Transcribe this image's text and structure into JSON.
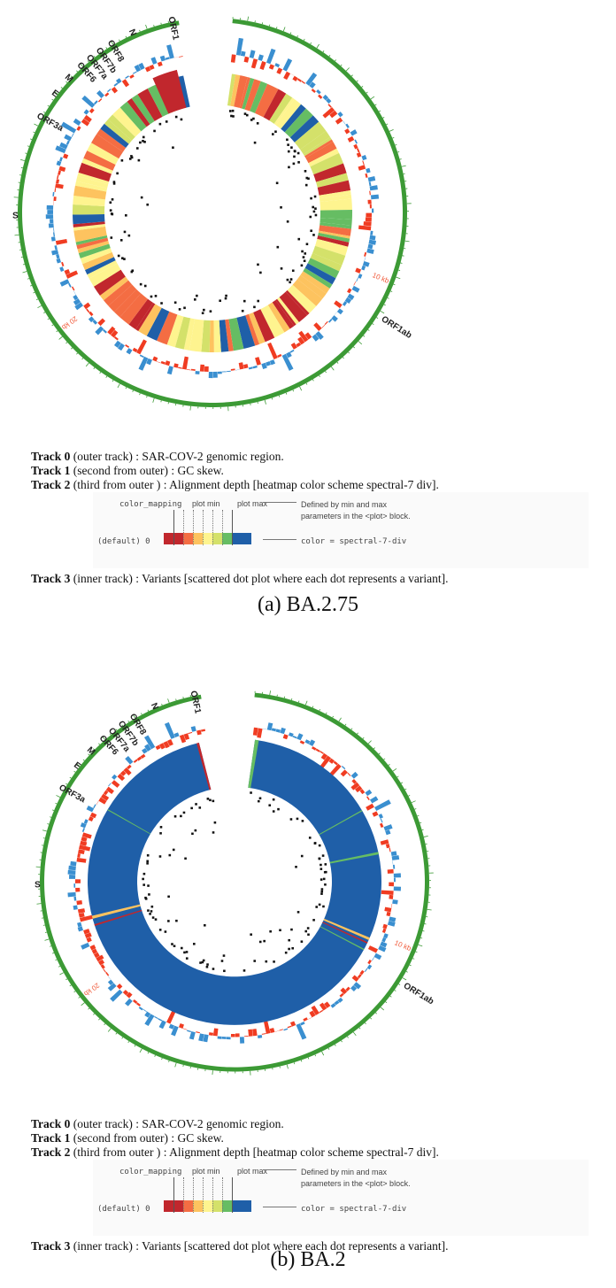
{
  "colors": {
    "genome_ring": "#3c9a35",
    "gc_positive": "#3a8fd0",
    "gc_negative": "#f03c22",
    "dots": "#111111",
    "spectral_7_div": [
      "#c1272d",
      "#c1272d",
      "#f46d43",
      "#fdc35f",
      "#fef48f",
      "#d4e16a",
      "#66bd63",
      "#1f5fa8",
      "#1f5fa8"
    ]
  },
  "panels": [
    {
      "caption": "(a) BA.2.75",
      "genes": [
        {
          "label": "ORF1",
          "angle": -12
        },
        {
          "label": "N",
          "angle": -24
        },
        {
          "label": "ORF8",
          "angle": -31
        },
        {
          "label": "ORF7b",
          "angle": -35
        },
        {
          "label": "ORF7a",
          "angle": -38.5
        },
        {
          "label": "ORF6",
          "angle": -42
        },
        {
          "label": "M",
          "angle": -47
        },
        {
          "label": "E",
          "angle": -53
        },
        {
          "label": "ORF3a",
          "angle": -61
        },
        {
          "label": "S",
          "angle": -91
        },
        {
          "label": "ORF1ab",
          "angle": 122
        }
      ],
      "ticks": [
        {
          "label": "10 kb",
          "angle": 112
        },
        {
          "label": "20 kb",
          "angle": -127
        }
      ],
      "heatmap": "varied"
    },
    {
      "caption": "(b) BA.2",
      "genes": [
        {
          "label": "ORF1",
          "angle": -12
        },
        {
          "label": "N",
          "angle": -24
        },
        {
          "label": "ORF8",
          "angle": -31
        },
        {
          "label": "ORF7b",
          "angle": -35
        },
        {
          "label": "ORF7a",
          "angle": -38.5
        },
        {
          "label": "ORF6",
          "angle": -42
        },
        {
          "label": "M",
          "angle": -47
        },
        {
          "label": "E",
          "angle": -53
        },
        {
          "label": "ORF3a",
          "angle": -61
        },
        {
          "label": "S",
          "angle": -91
        },
        {
          "label": "ORF1ab",
          "angle": 122
        }
      ],
      "ticks": [
        {
          "label": "10 kb",
          "angle": 112
        },
        {
          "label": "20 kb",
          "angle": -127
        }
      ],
      "heatmap": "uniform"
    }
  ],
  "legend": {
    "track0_head": "Track 0",
    "track0_text": " (outer track) : SAR-COV-2 genomic region.",
    "track1_head": "Track 1",
    "track1_text": " (second from outer) : GC skew.",
    "track2_head": "Track 2",
    "track2_text": " (third from outer )  : Alignment depth [heatmap color scheme spectral-7 div].",
    "track3_head": "Track 3",
    "track3_text": " (inner track) : Variants [scattered dot plot where each dot represents a variant].",
    "color_mapping": "color_mapping",
    "plot_min": "plot min",
    "plot_max": "plot max",
    "defined_by_1": "Defined by min and max",
    "defined_by_2": "parameters in the <plot> block.",
    "default": "(default)  0",
    "color_eq": "color = spectral-7-div"
  }
}
